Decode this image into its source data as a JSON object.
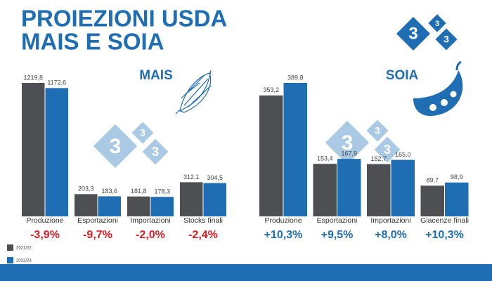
{
  "title": [
    "PROIEZIONI USDA",
    "MAIS E SOIA"
  ],
  "logo": {
    "digit": "3"
  },
  "chart_data": [
    {
      "type": "bar",
      "title": "MAIS",
      "categories": [
        "Produzione",
        "Esportazioni",
        "Importazioni",
        "Stocks finali"
      ],
      "series": [
        {
          "name": "2021/22",
          "color": "#4d4f53",
          "values": [
            1219.8,
            203.3,
            181.8,
            312.1
          ],
          "value_labels": [
            "1219,8",
            "203,3",
            "181,8",
            "312,1"
          ]
        },
        {
          "name": "2022/23",
          "color": "#1f6db3",
          "values": [
            1172.6,
            183.6,
            178.3,
            304.5
          ],
          "value_labels": [
            "1172,6",
            "183,6",
            "178,3",
            "304,5"
          ]
        }
      ],
      "annotations": [
        "-3,9%",
        "-9,7%",
        "-2,0%",
        "-2,4%"
      ],
      "annotation_color": "#e31b23"
    },
    {
      "type": "bar",
      "title": "SOIA",
      "categories": [
        "Produzione",
        "Esportazioni",
        "Importazioni",
        "Giacenze finali"
      ],
      "series": [
        {
          "color": "#4d4f53",
          "values": [
            353.2,
            153.4,
            152.7,
            89.7
          ],
          "value_labels": [
            "353,2",
            "153,4",
            "152,7",
            "89,7"
          ]
        },
        {
          "color": "#1f6db3",
          "values": [
            389.8,
            167.9,
            165.0,
            98.9
          ],
          "value_labels": [
            "389,8",
            "167,9",
            "165,0",
            "98,9"
          ]
        }
      ],
      "annotations": [
        "+10,3%",
        "+9,5%",
        "+8,0%",
        "+10,3%"
      ],
      "annotation_color": "#1f6db3"
    }
  ]
}
